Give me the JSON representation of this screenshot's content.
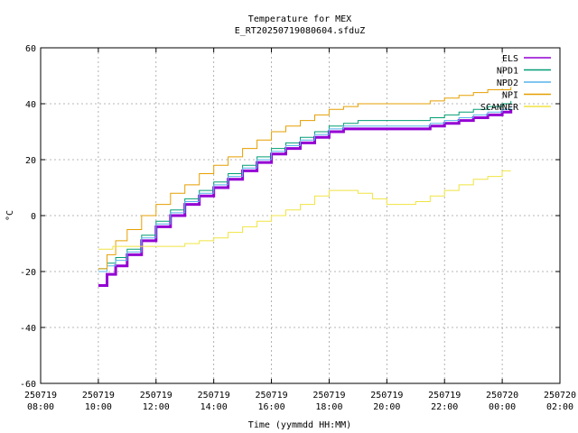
{
  "chart_data": {
    "type": "line",
    "title": "Temperature for MEX",
    "subtitle": "E_RT20250719080604.sfduZ",
    "xlabel": "Time (yymmdd HH:MM)",
    "ylabel": "°C",
    "xlim": [
      8,
      26
    ],
    "ylim": [
      -60,
      60
    ],
    "grid": true,
    "legend": "top-right",
    "x_ticks": [
      {
        "value": 8,
        "date": "250719",
        "time": "08:00"
      },
      {
        "value": 10,
        "date": "250719",
        "time": "10:00"
      },
      {
        "value": 12,
        "date": "250719",
        "time": "12:00"
      },
      {
        "value": 14,
        "date": "250719",
        "time": "14:00"
      },
      {
        "value": 16,
        "date": "250719",
        "time": "16:00"
      },
      {
        "value": 18,
        "date": "250719",
        "time": "18:00"
      },
      {
        "value": 20,
        "date": "250719",
        "time": "20:00"
      },
      {
        "value": 22,
        "date": "250719",
        "time": "22:00"
      },
      {
        "value": 24,
        "date": "250720",
        "time": "00:00"
      },
      {
        "value": 26,
        "date": "250720",
        "time": "02:00"
      }
    ],
    "y_ticks": [
      -60,
      -40,
      -20,
      0,
      20,
      40,
      60
    ],
    "series": [
      {
        "name": "ELS",
        "color": "#9400d3",
        "width": 3,
        "x": [
          10.0,
          10.3,
          10.6,
          11.0,
          11.5,
          12.0,
          12.5,
          13.0,
          13.5,
          14.0,
          14.5,
          15.0,
          15.5,
          16.0,
          16.5,
          17.0,
          17.5,
          18.0,
          18.5,
          19.0,
          19.5,
          20.0,
          20.5,
          21.0,
          21.5,
          22.0,
          22.5,
          23.0,
          23.5,
          24.0,
          24.3
        ],
        "y": [
          -25,
          -21,
          -18,
          -14,
          -9,
          -4,
          0,
          4,
          7,
          10,
          13,
          16,
          19,
          22,
          24,
          26,
          28,
          30,
          31,
          31,
          31,
          31,
          31,
          31,
          32,
          33,
          34,
          35,
          36,
          37,
          38
        ]
      },
      {
        "name": "NPD1",
        "color": "#009e73",
        "width": 1,
        "x": [
          10.0,
          10.3,
          10.6,
          11.0,
          11.5,
          12.0,
          12.5,
          13.0,
          13.5,
          14.0,
          14.5,
          15.0,
          15.5,
          16.0,
          16.5,
          17.0,
          17.5,
          18.0,
          18.5,
          19.0,
          19.5,
          20.0,
          20.5,
          21.0,
          21.5,
          22.0,
          22.5,
          23.0,
          23.5,
          24.0,
          24.3
        ],
        "y": [
          -19,
          -17,
          -15,
          -12,
          -7,
          -2,
          2,
          6,
          9,
          12,
          15,
          18,
          21,
          24,
          26,
          28,
          30,
          32,
          33,
          34,
          34,
          34,
          34,
          34,
          35,
          36,
          37,
          38,
          39,
          40,
          41
        ]
      },
      {
        "name": "NPD2",
        "color": "#56b4e9",
        "width": 1,
        "x": [
          10.0,
          10.3,
          10.6,
          11.0,
          11.5,
          12.0,
          12.5,
          13.0,
          13.5,
          14.0,
          14.5,
          15.0,
          15.5,
          16.0,
          16.5,
          17.0,
          17.5,
          18.0,
          18.5,
          19.0,
          19.5,
          20.0,
          20.5,
          21.0,
          21.5,
          22.0,
          22.5,
          23.0,
          23.5,
          24.0,
          24.3
        ],
        "y": [
          -20,
          -18,
          -16,
          -13,
          -8,
          -3,
          1,
          5,
          8,
          11,
          14,
          17,
          20,
          23,
          25,
          27,
          29,
          31,
          32,
          32,
          32,
          32,
          32,
          32,
          33,
          34,
          35,
          36,
          37,
          38,
          39
        ]
      },
      {
        "name": "NPI",
        "color": "#e69f00",
        "width": 1,
        "x": [
          10.0,
          10.3,
          10.6,
          11.0,
          11.5,
          12.0,
          12.5,
          13.0,
          13.5,
          14.0,
          14.5,
          15.0,
          15.5,
          16.0,
          16.5,
          17.0,
          17.5,
          18.0,
          18.5,
          19.0,
          19.5,
          20.0,
          20.5,
          21.0,
          21.5,
          22.0,
          22.5,
          23.0,
          23.5,
          24.0,
          24.3
        ],
        "y": [
          -19,
          -14,
          -9,
          -5,
          0,
          4,
          8,
          11,
          15,
          18,
          21,
          24,
          27,
          30,
          32,
          34,
          36,
          38,
          39,
          40,
          40,
          40,
          40,
          40,
          41,
          42,
          43,
          44,
          45,
          45,
          46
        ]
      },
      {
        "name": "SCANNER",
        "color": "#f0e442",
        "width": 1,
        "x": [
          10.0,
          10.5,
          11.0,
          11.5,
          12.0,
          12.5,
          13.0,
          13.5,
          14.0,
          14.5,
          15.0,
          15.5,
          16.0,
          16.5,
          17.0,
          17.5,
          18.0,
          18.5,
          19.0,
          19.5,
          20.0,
          20.5,
          21.0,
          21.5,
          22.0,
          22.5,
          23.0,
          23.5,
          24.0,
          24.3
        ],
        "y": [
          -12,
          -11,
          -11,
          -11,
          -11,
          -11,
          -10,
          -9,
          -8,
          -6,
          -4,
          -2,
          0,
          2,
          4,
          7,
          9,
          9,
          8,
          6,
          4,
          4,
          5,
          7,
          9,
          11,
          13,
          14,
          16,
          16
        ]
      }
    ]
  }
}
